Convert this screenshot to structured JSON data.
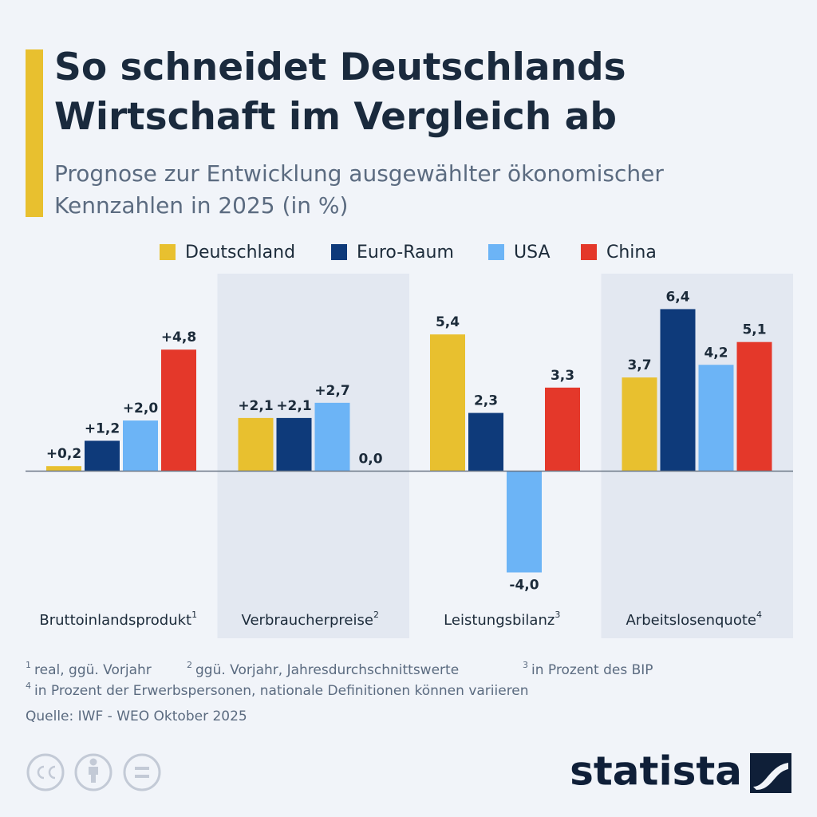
{
  "chart_data": {
    "type": "bar",
    "title": "So schneidet Deutschlands Wirtschaft im Vergleich ab",
    "subtitle": "Prognose zur Entwicklung ausgewählter ökonomischer Kennzahlen in 2025 (in %)",
    "categories": [
      "Bruttoinlandsprodukt",
      "Verbraucherpreise",
      "Leistungsbilanz",
      "Arbeitslosenquote"
    ],
    "category_marks": [
      "1",
      "2",
      "3",
      "4"
    ],
    "series": [
      {
        "name": "Deutschland",
        "color": "#e8c02f",
        "values": [
          0.2,
          2.1,
          5.4,
          3.7
        ],
        "value_labels": [
          "+0,2",
          "+2,1",
          "5,4",
          "3,7"
        ]
      },
      {
        "name": "Euro-Raum",
        "color": "#0e3a7a",
        "values": [
          1.2,
          2.1,
          2.3,
          6.4
        ],
        "value_labels": [
          "+1,2",
          "+2,1",
          "2,3",
          "6,4"
        ]
      },
      {
        "name": "USA",
        "color": "#6cb4f6",
        "values": [
          2.0,
          2.7,
          -4.0,
          4.2
        ],
        "value_labels": [
          "+2,0",
          "+2,7",
          "-4,0",
          "4,2"
        ]
      },
      {
        "name": "China",
        "color": "#e4382a",
        "values": [
          4.8,
          0.0,
          3.3,
          5.1
        ],
        "value_labels": [
          "+4,8",
          "0,0",
          "3,3",
          "5,1"
        ]
      }
    ],
    "ylim": [
      -6.6,
      7.8
    ],
    "footnotes": [
      {
        "mark": "1",
        "text": "real, ggü. Vorjahr"
      },
      {
        "mark": "2",
        "text": "ggü. Vorjahr, Jahresdurchschnittswerte"
      },
      {
        "mark": "3",
        "text": "in Prozent des BIP"
      },
      {
        "mark": "4",
        "text": "in Prozent der Erwerbspersonen, nationale Definitionen können variieren"
      }
    ],
    "source": "Quelle: IWF - WEO Oktober 2025",
    "brand": "statista"
  }
}
